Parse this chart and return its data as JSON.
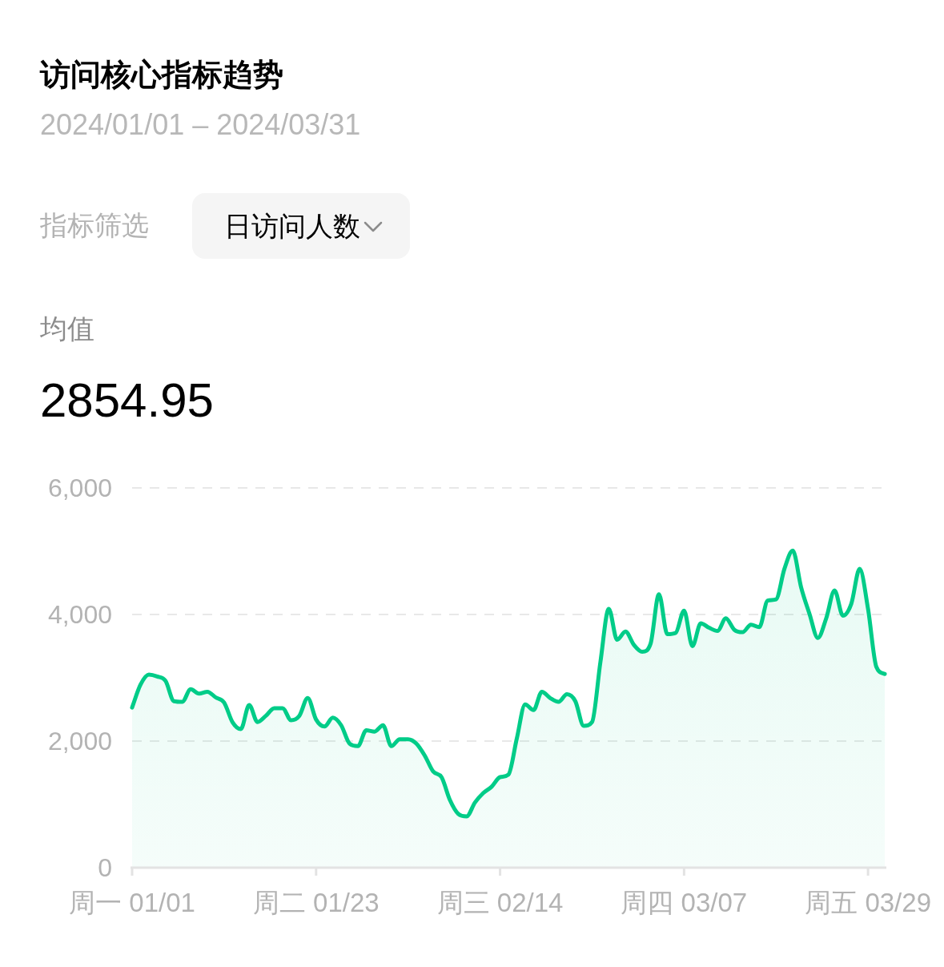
{
  "chart_data": {
    "type": "area",
    "title": "访问核心指标趋势",
    "subtitle": "2024/01/01 – 2024/03/31",
    "annotations": [
      "指标筛选",
      "日访问人数",
      "均值",
      "2854.95"
    ],
    "x": [
      "2024-01-01",
      "2024-01-02",
      "2024-01-03",
      "2024-01-04",
      "2024-01-05",
      "2024-01-06",
      "2024-01-07",
      "2024-01-08",
      "2024-01-09",
      "2024-01-10",
      "2024-01-11",
      "2024-01-12",
      "2024-01-13",
      "2024-01-14",
      "2024-01-15",
      "2024-01-16",
      "2024-01-17",
      "2024-01-18",
      "2024-01-19",
      "2024-01-20",
      "2024-01-21",
      "2024-01-22",
      "2024-01-23",
      "2024-01-24",
      "2024-01-25",
      "2024-01-26",
      "2024-01-27",
      "2024-01-28",
      "2024-01-29",
      "2024-01-30",
      "2024-01-31",
      "2024-02-01",
      "2024-02-02",
      "2024-02-03",
      "2024-02-04",
      "2024-02-05",
      "2024-02-06",
      "2024-02-07",
      "2024-02-08",
      "2024-02-09",
      "2024-02-10",
      "2024-02-11",
      "2024-02-12",
      "2024-02-13",
      "2024-02-14",
      "2024-02-15",
      "2024-02-16",
      "2024-02-17",
      "2024-02-18",
      "2024-02-19",
      "2024-02-20",
      "2024-02-21",
      "2024-02-22",
      "2024-02-23",
      "2024-02-24",
      "2024-02-25",
      "2024-02-26",
      "2024-02-27",
      "2024-02-28",
      "2024-02-29",
      "2024-03-01",
      "2024-03-02",
      "2024-03-03",
      "2024-03-04",
      "2024-03-05",
      "2024-03-06",
      "2024-03-07",
      "2024-03-08",
      "2024-03-09",
      "2024-03-10",
      "2024-03-11",
      "2024-03-12",
      "2024-03-13",
      "2024-03-14",
      "2024-03-15",
      "2024-03-16",
      "2024-03-17",
      "2024-03-18",
      "2024-03-19",
      "2024-03-20",
      "2024-03-21",
      "2024-03-22",
      "2024-03-23",
      "2024-03-24",
      "2024-03-25",
      "2024-03-26",
      "2024-03-27",
      "2024-03-28",
      "2024-03-29",
      "2024-03-30",
      "2024-03-31"
    ],
    "series": [
      {
        "color": "#00cc88",
        "values": [
          2530,
          2890,
          3050,
          3020,
          2950,
          2630,
          2620,
          2820,
          2750,
          2780,
          2690,
          2610,
          2300,
          2190,
          2570,
          2300,
          2400,
          2520,
          2520,
          2330,
          2400,
          2680,
          2340,
          2230,
          2370,
          2250,
          1960,
          1920,
          2170,
          2150,
          2250,
          1920,
          2030,
          2030,
          1960,
          1770,
          1520,
          1430,
          1070,
          850,
          810,
          1030,
          1180,
          1280,
          1430,
          1470,
          2040,
          2580,
          2490,
          2780,
          2680,
          2620,
          2740,
          2630,
          2240,
          2300,
          3250,
          4090,
          3600,
          3730,
          3520,
          3410,
          3540,
          4320,
          3690,
          3710,
          4060,
          3500,
          3860,
          3790,
          3740,
          3940,
          3760,
          3720,
          3840,
          3800,
          4220,
          4240,
          4720,
          5010,
          4430,
          4010,
          3630,
          3940,
          4380,
          3980,
          4170,
          4720,
          4090,
          3170,
          3060
        ]
      }
    ],
    "xlim": [
      "2024-01-01",
      "2024-03-31"
    ],
    "xticks": [
      {
        "value": "2024-01-01",
        "label": "周一 01/01"
      },
      {
        "value": "2024-01-23",
        "label": "周二 01/23"
      },
      {
        "value": "2024-02-14",
        "label": "周三 02/14"
      },
      {
        "value": "2024-03-07",
        "label": "周四 03/07"
      },
      {
        "value": "2024-03-29",
        "label": "周五 03/29"
      }
    ],
    "ylim": [
      0,
      6000
    ],
    "yticks": [
      0,
      {
        "value": 2000,
        "label": "2,000"
      },
      {
        "value": 4000,
        "label": "4,000"
      },
      {
        "value": 6000,
        "label": "6,000"
      }
    ],
    "grid": "y"
  }
}
